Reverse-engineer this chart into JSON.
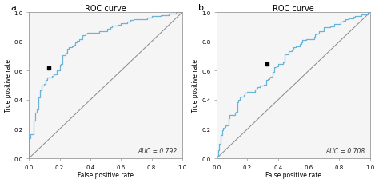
{
  "title": "ROC curve",
  "xlabel": "False positive rate",
  "ylabel": "True positive rate",
  "auc_a": "AUC = 0.792",
  "auc_b": "AUC = 0.708",
  "label_a": "a",
  "label_b": "b",
  "roc_color": "#6ab4d8",
  "diag_color": "#888888",
  "point_a": [
    0.13,
    0.62
  ],
  "point_b": [
    0.33,
    0.645
  ],
  "bg_color": "#ffffff",
  "plot_bg": "#f5f5f5",
  "tick_vals": [
    0.0,
    0.2,
    0.4,
    0.6,
    0.8,
    1.0
  ],
  "tick_labels": [
    "0.0",
    "0.2",
    "0.4",
    "0.6",
    "0.8",
    "1.0"
  ]
}
